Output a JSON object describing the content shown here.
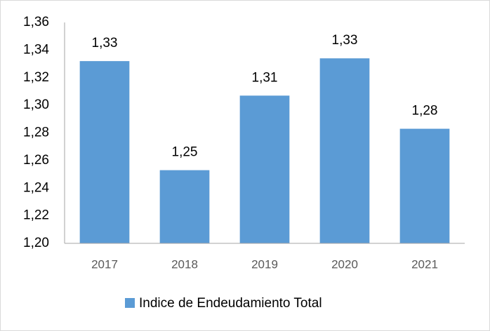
{
  "chart_data": {
    "type": "bar",
    "categories": [
      "2017",
      "2018",
      "2019",
      "2020",
      "2021"
    ],
    "series": [
      {
        "name": "Indice de Endeudamiento Total",
        "color": "#5b9bd5",
        "values": [
          1.332,
          1.253,
          1.307,
          1.334,
          1.283
        ],
        "value_labels": [
          "1,33",
          "1,25",
          "1,31",
          "1,33",
          "1,28"
        ]
      }
    ],
    "ylim": [
      1.2,
      1.36
    ],
    "yticks": [
      {
        "value": 1.2,
        "label": "1,20"
      },
      {
        "value": 1.22,
        "label": "1,22"
      },
      {
        "value": 1.24,
        "label": "1,24"
      },
      {
        "value": 1.26,
        "label": "1,26"
      },
      {
        "value": 1.28,
        "label": "1,28"
      },
      {
        "value": 1.3,
        "label": "1,30"
      },
      {
        "value": 1.32,
        "label": "1,32"
      },
      {
        "value": 1.34,
        "label": "1,34"
      },
      {
        "value": 1.36,
        "label": "1,36"
      }
    ],
    "grid": false,
    "legend": "bottom"
  }
}
